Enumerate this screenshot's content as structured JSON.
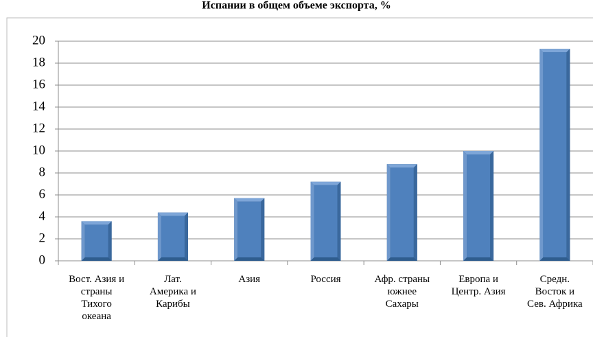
{
  "chart_data": {
    "type": "bar",
    "title": "Испании в общем объеме экспорта, %",
    "categories": [
      "Вост. Азия и\nстраны\nТихого\nокеана",
      "Лат.\nАмерика и\nКарибы",
      "Азия",
      "Россия",
      "Афр. страны\nюжнее\nСахары",
      "Европа и\nЦентр. Азия",
      "Средн.\nВосток и\nСев. Африка"
    ],
    "values": [
      3.6,
      4.4,
      5.7,
      7.2,
      8.8,
      10.0,
      19.3
    ],
    "color": "#4f81bd",
    "ylim": [
      0,
      20
    ],
    "yticks": [
      0,
      2,
      4,
      6,
      8,
      10,
      12,
      14,
      16,
      18,
      20
    ],
    "grid": true
  }
}
